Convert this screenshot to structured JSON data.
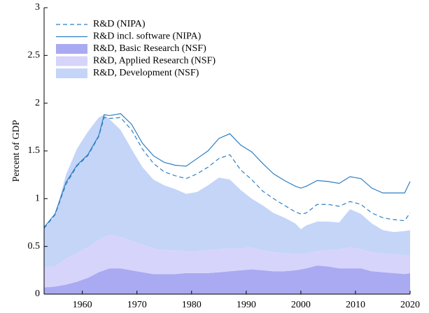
{
  "chart_data": {
    "type": "area",
    "ylabel": "Percent of GDP",
    "x": [
      1953,
      1955,
      1957,
      1959,
      1961,
      1963,
      1964,
      1965,
      1967,
      1969,
      1971,
      1973,
      1975,
      1977,
      1979,
      1981,
      1983,
      1985,
      1987,
      1989,
      1991,
      1993,
      1995,
      1997,
      1999,
      2000,
      2001,
      2003,
      2005,
      2007,
      2009,
      2011,
      2013,
      2015,
      2017,
      2019,
      2020
    ],
    "series": [
      {
        "name": "R&D (NIPA)",
        "type": "line",
        "dashed": true,
        "color": "#2f7fc1",
        "values": [
          0.69,
          0.83,
          1.15,
          1.34,
          1.45,
          1.65,
          1.85,
          1.84,
          1.85,
          1.72,
          1.52,
          1.37,
          1.28,
          1.24,
          1.21,
          1.26,
          1.33,
          1.42,
          1.46,
          1.3,
          1.2,
          1.08,
          1.0,
          0.93,
          0.86,
          0.84,
          0.85,
          0.94,
          0.94,
          0.92,
          0.97,
          0.94,
          0.85,
          0.8,
          0.78,
          0.77,
          0.85
        ]
      },
      {
        "name": "R&D incl. software (NIPA)",
        "type": "line",
        "dashed": false,
        "color": "#2f7fc1",
        "values": [
          0.7,
          0.84,
          1.17,
          1.35,
          1.46,
          1.66,
          1.88,
          1.87,
          1.89,
          1.78,
          1.58,
          1.45,
          1.38,
          1.35,
          1.34,
          1.42,
          1.5,
          1.63,
          1.68,
          1.56,
          1.49,
          1.37,
          1.26,
          1.19,
          1.13,
          1.11,
          1.13,
          1.19,
          1.18,
          1.16,
          1.23,
          1.21,
          1.11,
          1.06,
          1.06,
          1.06,
          1.18
        ]
      },
      {
        "name": "R&D, Basic Research (NSF)",
        "type": "area",
        "color": "#aaaaf2",
        "values": [
          0.07,
          0.08,
          0.1,
          0.13,
          0.17,
          0.23,
          0.25,
          0.27,
          0.27,
          0.25,
          0.23,
          0.21,
          0.21,
          0.21,
          0.22,
          0.22,
          0.22,
          0.23,
          0.24,
          0.25,
          0.26,
          0.25,
          0.24,
          0.24,
          0.25,
          0.26,
          0.27,
          0.3,
          0.29,
          0.27,
          0.27,
          0.27,
          0.24,
          0.23,
          0.22,
          0.21,
          0.22
        ]
      },
      {
        "name": "R&D, Applied Research (NSF)",
        "type": "area",
        "color": "#d7d4fb",
        "values": [
          0.21,
          0.21,
          0.27,
          0.3,
          0.32,
          0.34,
          0.35,
          0.35,
          0.33,
          0.31,
          0.29,
          0.27,
          0.25,
          0.25,
          0.23,
          0.23,
          0.24,
          0.24,
          0.24,
          0.23,
          0.23,
          0.21,
          0.2,
          0.19,
          0.17,
          0.16,
          0.16,
          0.15,
          0.17,
          0.2,
          0.22,
          0.2,
          0.2,
          0.2,
          0.2,
          0.2,
          0.19
        ]
      },
      {
        "name": "R&D, Development (NSF)",
        "type": "area",
        "color": "#c4d5f8",
        "values": [
          0.41,
          0.53,
          0.88,
          1.09,
          1.21,
          1.28,
          1.28,
          1.21,
          1.12,
          0.96,
          0.81,
          0.72,
          0.68,
          0.64,
          0.6,
          0.62,
          0.68,
          0.75,
          0.72,
          0.61,
          0.51,
          0.47,
          0.41,
          0.37,
          0.32,
          0.26,
          0.29,
          0.31,
          0.3,
          0.28,
          0.4,
          0.37,
          0.3,
          0.24,
          0.23,
          0.25,
          0.26
        ]
      }
    ],
    "xlim": [
      1953,
      2020
    ],
    "xticks": [
      1960,
      1970,
      1980,
      1990,
      2000,
      2010,
      2020
    ],
    "ylim": [
      0,
      3
    ],
    "yticks": [
      0,
      0.5,
      1,
      1.5,
      2,
      2.5,
      3
    ],
    "grid": false,
    "legend": "upper-left"
  }
}
